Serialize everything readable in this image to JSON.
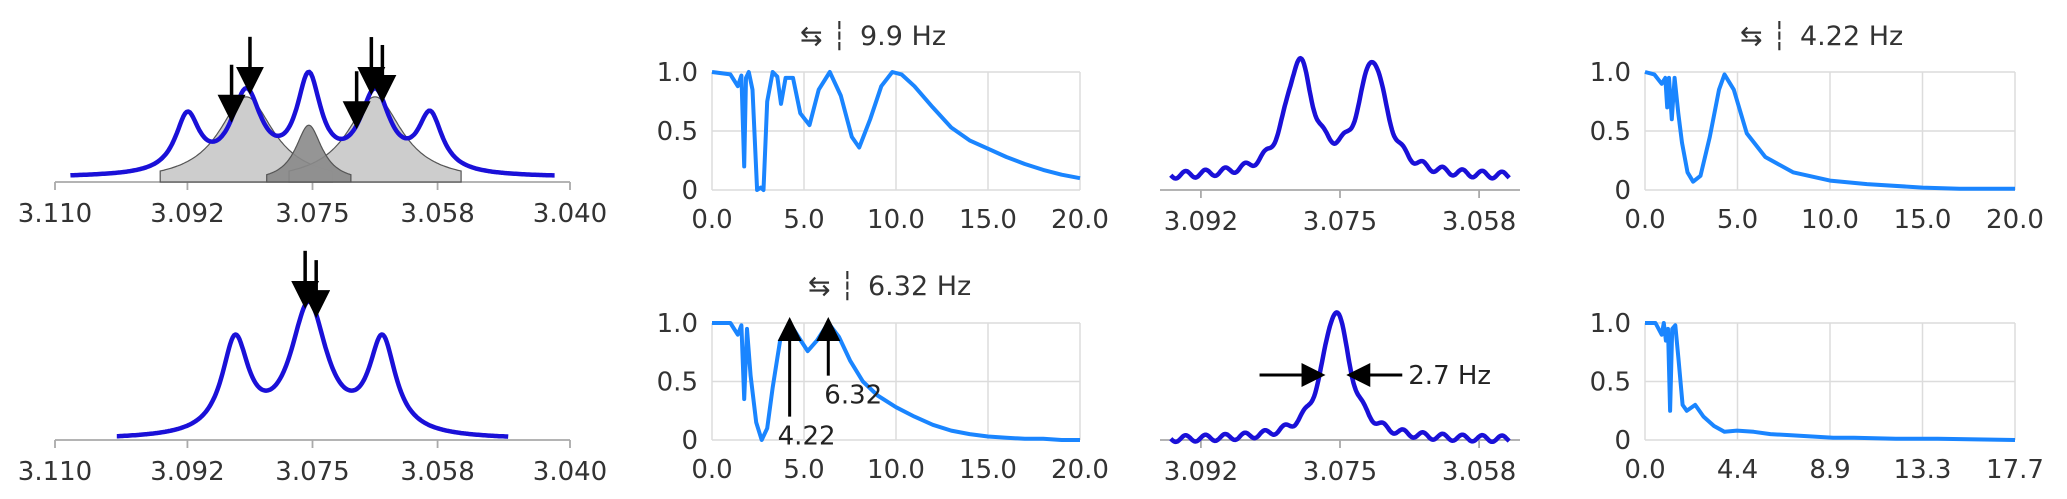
{
  "colors": {
    "spectrum": "#1a10d8",
    "curve": "#1a85ff",
    "grid": "#dcdcdc",
    "fill_light": "#c8c8c8",
    "fill_dark": "#8a8a8a",
    "arrow": "#000000"
  },
  "chart_data": [
    {
      "type": "line",
      "panel": "top-left",
      "xlim": [
        3.11,
        3.04
      ],
      "xticks": [
        "3.110",
        "3.092",
        "3.075",
        "3.058",
        "3.040"
      ],
      "xtick_values": [
        3.11,
        3.092,
        3.075,
        3.058,
        3.04
      ],
      "peaks": [
        {
          "center": 3.092,
          "height": 0.4,
          "width": 0.002
        },
        {
          "center": 3.084,
          "height": 0.56,
          "width": 0.0025
        },
        {
          "center": 3.0755,
          "height": 0.65,
          "width": 0.002
        },
        {
          "center": 3.0665,
          "height": 0.56,
          "width": 0.0025
        },
        {
          "center": 3.059,
          "height": 0.4,
          "width": 0.002
        }
      ],
      "baseline": 0.03,
      "shaded_components": [
        {
          "center": 3.084,
          "height": 0.6,
          "width": 0.0045,
          "tone": "light"
        },
        {
          "center": 3.0665,
          "height": 0.6,
          "width": 0.0045,
          "tone": "light"
        },
        {
          "center": 3.0755,
          "height": 0.4,
          "width": 0.0022,
          "tone": "dark"
        }
      ],
      "arrows_at": [
        3.086,
        3.0835,
        3.069,
        3.067,
        3.0655
      ]
    },
    {
      "type": "line",
      "panel": "top-center",
      "title": "9.9 Hz",
      "xlim": [
        0,
        20
      ],
      "ylim": [
        0,
        1
      ],
      "xticks": [
        "0.0",
        "5.0",
        "10.0",
        "15.0",
        "20.0"
      ],
      "yticks": [
        "0",
        "0.5",
        "1.0"
      ],
      "x": [
        0.0,
        1.0,
        1.4,
        1.6,
        1.75,
        1.85,
        2.0,
        2.2,
        2.45,
        2.65,
        2.8,
        3.0,
        3.3,
        3.55,
        3.75,
        4.0,
        4.4,
        4.8,
        5.3,
        5.8,
        6.4,
        7.0,
        7.6,
        8.0,
        8.6,
        9.2,
        9.8,
        10.3,
        11.0,
        12.0,
        13.0,
        14.0,
        15.0,
        16.0,
        17.0,
        18.0,
        19.0,
        20.0
      ],
      "y": [
        1.0,
        0.98,
        0.88,
        0.97,
        0.2,
        0.95,
        1.0,
        0.85,
        0.0,
        0.02,
        0.0,
        0.75,
        1.0,
        0.96,
        0.73,
        0.95,
        0.95,
        0.65,
        0.55,
        0.85,
        1.0,
        0.8,
        0.45,
        0.36,
        0.6,
        0.88,
        1.0,
        0.98,
        0.88,
        0.7,
        0.53,
        0.42,
        0.35,
        0.28,
        0.22,
        0.17,
        0.13,
        0.1
      ]
    },
    {
      "type": "line",
      "panel": "top-right-spectrum",
      "xlim": [
        3.097,
        3.053
      ],
      "xticks": [
        "3.092",
        "3.075",
        "3.058"
      ],
      "xtick_values": [
        3.092,
        3.075,
        3.058
      ],
      "peaks": [
        {
          "center": 3.08,
          "height": 0.8,
          "width": 0.002
        },
        {
          "center": 3.071,
          "height": 0.8,
          "width": 0.002
        }
      ],
      "baseline": 0.03
    },
    {
      "type": "line",
      "panel": "top-right",
      "title": "4.22 Hz",
      "xlim": [
        0,
        20
      ],
      "ylim": [
        0,
        1
      ],
      "xticks": [
        "0.0",
        "5.0",
        "10.0",
        "15.0",
        "20.0"
      ],
      "yticks": [
        "0",
        "0.5",
        "1.0"
      ],
      "x": [
        0.0,
        0.5,
        0.9,
        1.1,
        1.2,
        1.3,
        1.45,
        1.6,
        1.8,
        2.0,
        2.3,
        2.6,
        3.0,
        3.5,
        4.0,
        4.3,
        4.8,
        5.5,
        6.5,
        8.0,
        10.0,
        12.0,
        15.0,
        17.0,
        20.0
      ],
      "y": [
        1.0,
        0.98,
        0.9,
        0.95,
        0.7,
        0.95,
        0.6,
        0.95,
        0.65,
        0.4,
        0.15,
        0.07,
        0.12,
        0.45,
        0.85,
        0.98,
        0.85,
        0.48,
        0.28,
        0.15,
        0.08,
        0.05,
        0.02,
        0.01,
        0.01
      ]
    },
    {
      "type": "line",
      "panel": "bottom-left",
      "xlim": [
        3.11,
        3.04
      ],
      "xticks": [
        "3.110",
        "3.092",
        "3.075",
        "3.058",
        "3.040"
      ],
      "xtick_values": [
        3.11,
        3.092,
        3.075,
        3.058,
        3.04
      ],
      "peaks": [
        {
          "center": 3.0855,
          "height": 0.72,
          "width": 0.0022
        },
        {
          "center": 3.0755,
          "height": 1.0,
          "width": 0.003
        },
        {
          "center": 3.0655,
          "height": 0.72,
          "width": 0.0022
        }
      ],
      "baseline": 0.0,
      "arrows_at": [
        3.076,
        3.0745
      ]
    },
    {
      "type": "line",
      "panel": "bottom-center",
      "title": "6.32 Hz",
      "xlim": [
        0,
        20
      ],
      "ylim": [
        0,
        1
      ],
      "xticks": [
        "0.0",
        "5.0",
        "10.0",
        "15.0",
        "20.0"
      ],
      "yticks": [
        "0",
        "0.5",
        "1.0"
      ],
      "x": [
        0.0,
        1.0,
        1.4,
        1.6,
        1.75,
        1.9,
        2.1,
        2.4,
        2.7,
        3.0,
        3.3,
        3.7,
        4.22,
        4.7,
        5.2,
        5.7,
        6.32,
        6.9,
        7.5,
        8.2,
        9.0,
        10.0,
        11.0,
        12.0,
        13.0,
        14.0,
        15.0,
        16.0,
        17.0,
        18.0,
        19.0,
        20.0
      ],
      "y": [
        1.0,
        1.0,
        0.9,
        0.98,
        0.35,
        0.95,
        0.55,
        0.15,
        0.0,
        0.1,
        0.45,
        0.85,
        1.0,
        0.88,
        0.76,
        0.85,
        1.0,
        0.88,
        0.68,
        0.5,
        0.38,
        0.28,
        0.2,
        0.13,
        0.08,
        0.05,
        0.03,
        0.02,
        0.01,
        0.01,
        0.0,
        0.0
      ],
      "annotations": [
        {
          "x": 4.22,
          "label": "4.22"
        },
        {
          "x": 6.32,
          "label": "6.32"
        }
      ]
    },
    {
      "type": "line",
      "panel": "bottom-right-spectrum",
      "xlim": [
        3.097,
        3.053
      ],
      "xticks": [
        "3.092",
        "3.075",
        "3.058"
      ],
      "xtick_values": [
        3.092,
        3.075,
        3.058
      ],
      "peaks": [
        {
          "center": 3.0755,
          "height": 1.0,
          "width": 0.002
        }
      ],
      "baseline": 0.0,
      "width_annotation": "2.7 Hz"
    },
    {
      "type": "line",
      "panel": "bottom-right",
      "xlim": [
        0,
        17.7
      ],
      "ylim": [
        0,
        1
      ],
      "xticks": [
        "0.0",
        "4.4",
        "8.9",
        "13.3",
        "17.7"
      ],
      "yticks": [
        "0",
        "0.5",
        "1.0"
      ],
      "x": [
        0.0,
        0.5,
        0.8,
        0.9,
        1.0,
        1.1,
        1.2,
        1.3,
        1.45,
        1.6,
        1.8,
        2.0,
        2.4,
        2.8,
        3.3,
        3.8,
        4.4,
        5.2,
        6.0,
        7.0,
        8.0,
        9.0,
        10.0,
        12.0,
        14.0,
        17.7
      ],
      "y": [
        1.0,
        1.0,
        0.9,
        1.0,
        0.85,
        0.95,
        0.25,
        0.95,
        0.98,
        0.7,
        0.3,
        0.25,
        0.3,
        0.2,
        0.12,
        0.07,
        0.08,
        0.07,
        0.05,
        0.04,
        0.03,
        0.02,
        0.02,
        0.01,
        0.01,
        0.0
      ]
    }
  ]
}
